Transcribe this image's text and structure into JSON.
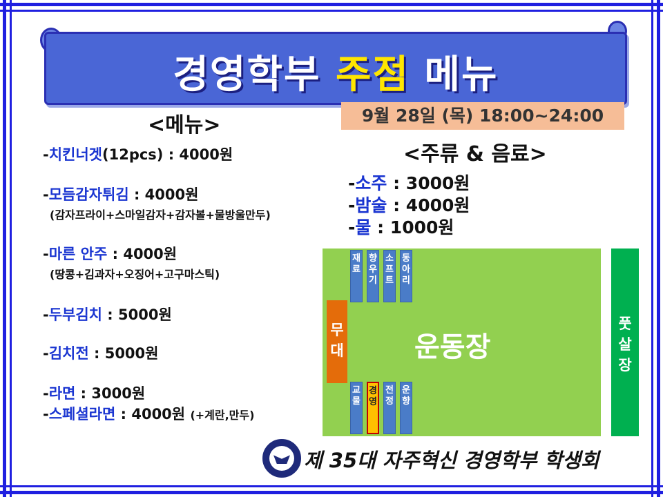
{
  "banner": {
    "title_a": "경영학부 ",
    "title_b": "주점",
    "title_c": " 메뉴"
  },
  "date": "9월 28일 (목) 18:00~24:00",
  "menu_heading": "<메뉴>",
  "drinks_heading": "<주류 & 음료>",
  "menu": [
    {
      "dash": "-",
      "name": "치킨너겟",
      "rest": "(12pcs) : 4000원"
    },
    {
      "dash": "-",
      "name": "모듬감자튀김",
      "rest": " : 4000원",
      "sub": "(감자프라이+스마일감자+감자볼+물방울만두)"
    },
    {
      "dash": "-",
      "name": "마른 안주",
      "rest": " : 4000원",
      "sub": "(땅콩+김과자+오징어+고구마스틱)"
    },
    {
      "dash": "-",
      "name": "두부김치",
      "rest": " : 5000원"
    },
    {
      "dash": "-",
      "name": "김치전",
      "rest": " : 5000원"
    },
    {
      "dash": "-",
      "name": "라면",
      "rest": " : 3000원"
    },
    {
      "dash": "-",
      "name": "스페셜라면",
      "rest": " : 4000원 ",
      "extra": "(+계란,만두)"
    }
  ],
  "drinks": [
    {
      "dash": "-",
      "name": "소주",
      "rest": " : 3000원"
    },
    {
      "dash": "-",
      "name": "밤술",
      "rest": " : 4000원"
    },
    {
      "dash": "-",
      "name": "물",
      "rest": " : 1000원"
    }
  ],
  "map": {
    "field": "운동장",
    "stage": "무대",
    "futsal": "풋살장",
    "top_booths": [
      "재료",
      "향우기",
      "소프트",
      "동아리"
    ],
    "bottom_booths": [
      "교물",
      "경영",
      "전정",
      "운향"
    ],
    "highlight_booth": "경영"
  },
  "footer": "제 35대 자주혁신 경영학부 학생회"
}
